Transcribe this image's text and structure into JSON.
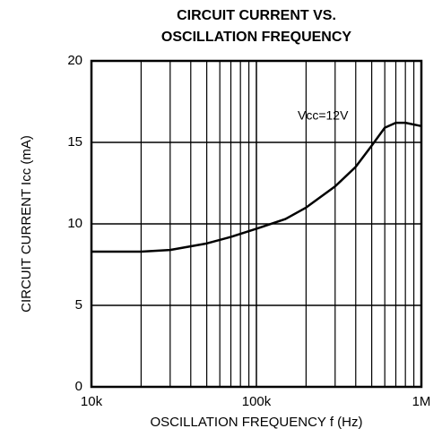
{
  "chart_data": {
    "type": "line",
    "title": [
      "CIRCUIT CURRENT VS.",
      "OSCILLATION FREQUENCY"
    ],
    "xlabel": "OSCILLATION FREQUENCY f (Hz)",
    "ylabel": "CIRCUIT CURRENT Icc (mA)",
    "annotation": "Vcc=12V",
    "xscale": "log",
    "x": [
      10000,
      20000,
      30000,
      50000,
      70000,
      100000,
      150000,
      200000,
      300000,
      400000,
      500000,
      600000,
      700000,
      800000,
      1000000
    ],
    "series": [
      {
        "name": "Vcc=12V",
        "color": "#000000",
        "values": [
          8.3,
          8.3,
          8.4,
          8.8,
          9.2,
          9.7,
          10.3,
          11.0,
          12.3,
          13.5,
          14.8,
          15.9,
          16.2,
          16.2,
          16.0
        ]
      }
    ],
    "xlim": [
      10000,
      1000000
    ],
    "xticks": [
      {
        "value": 10000,
        "label": "10k"
      },
      {
        "value": 100000,
        "label": "100k"
      },
      {
        "value": 1000000,
        "label": "1M"
      }
    ],
    "xminorticks": [
      20000,
      30000,
      40000,
      50000,
      60000,
      70000,
      80000,
      90000,
      200000,
      300000,
      400000,
      500000,
      600000,
      700000,
      800000,
      900000
    ],
    "ylim": [
      0,
      20
    ],
    "yticks": [
      0,
      5,
      10,
      15,
      20
    ],
    "grid": true
  }
}
